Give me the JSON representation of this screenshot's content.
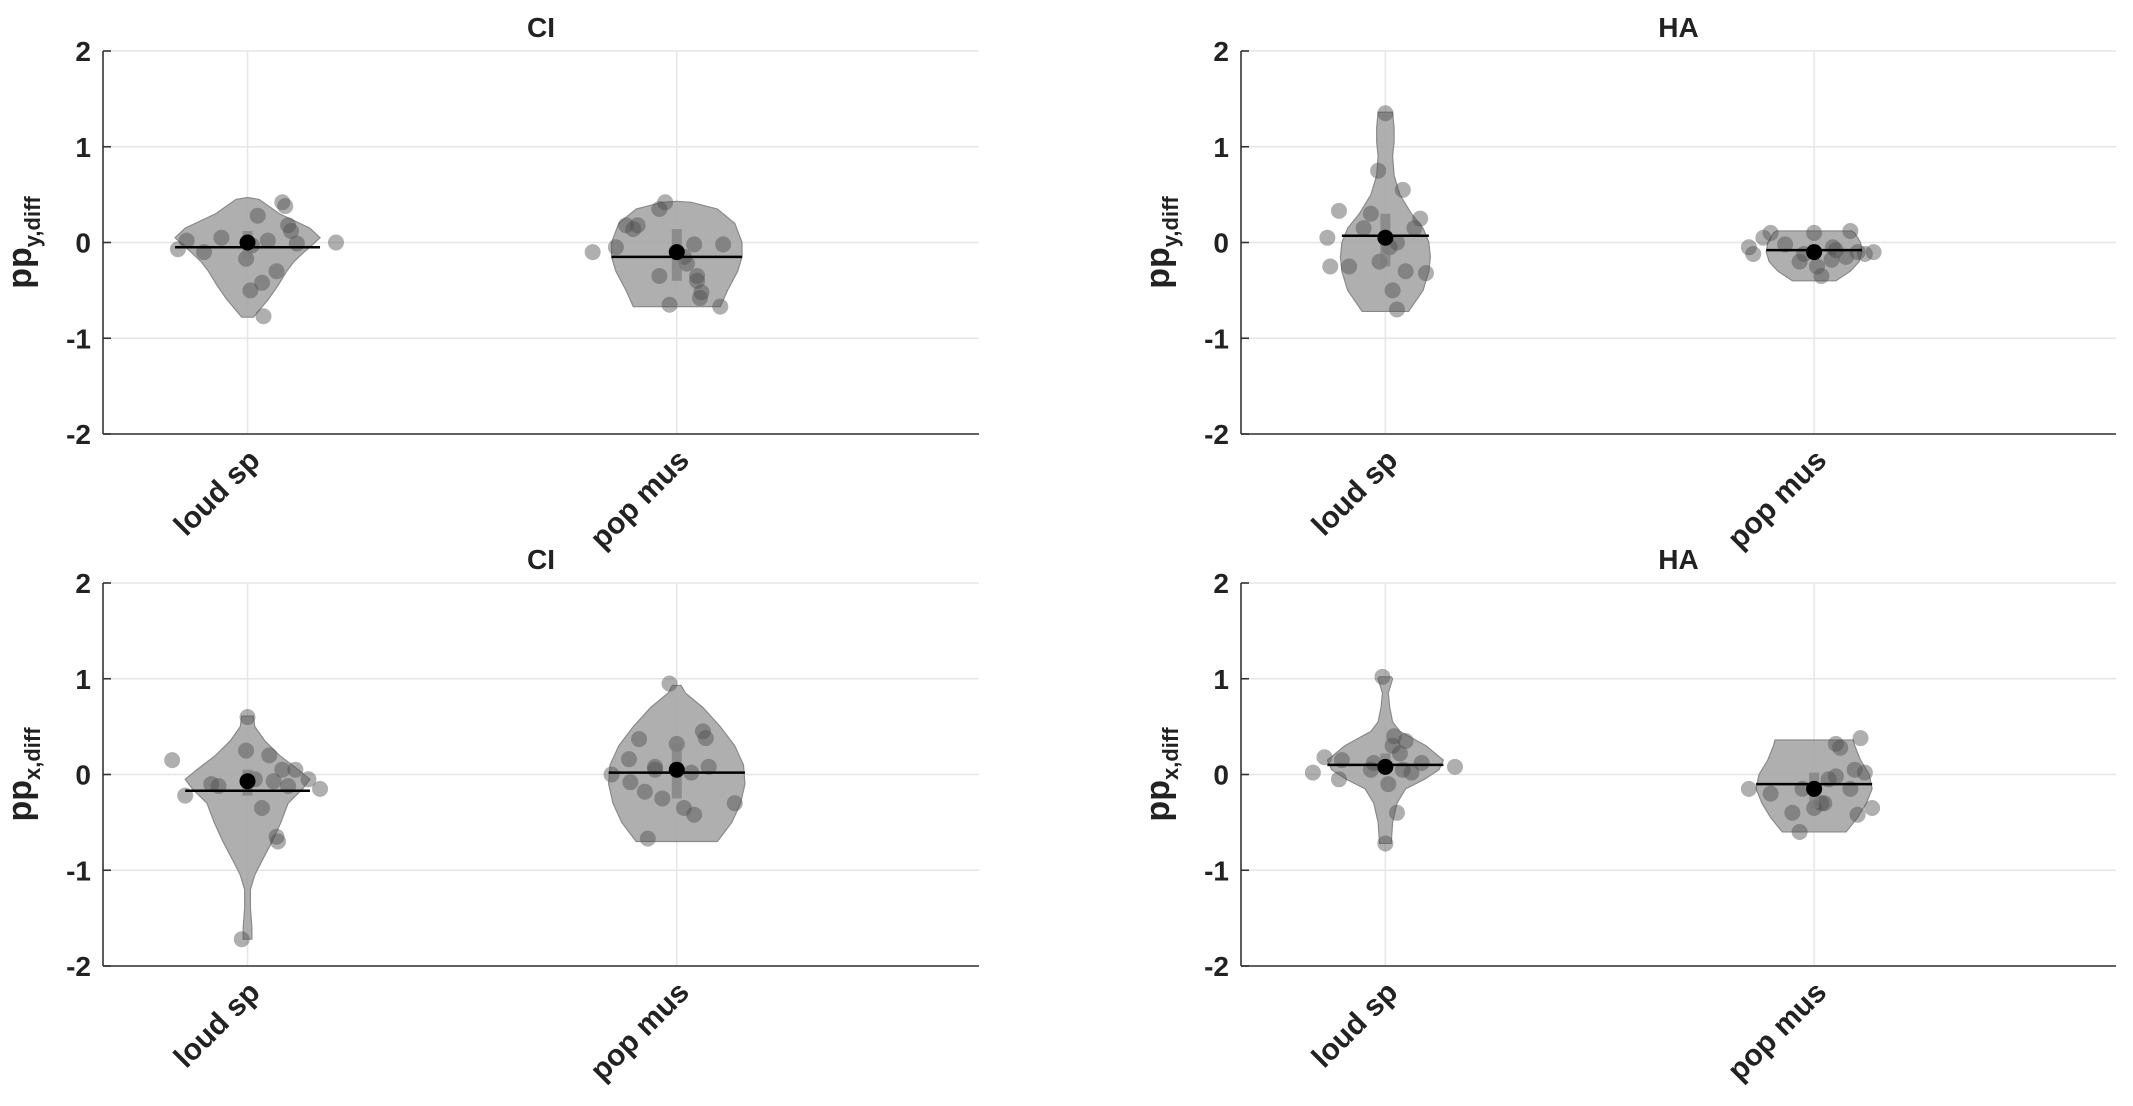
{
  "figure": {
    "fill": "#a6a6a6",
    "dot": "#4d4d4d",
    "median": "#000000"
  },
  "chart_data": [
    {
      "type": "violin",
      "title": "CI",
      "ylabel": {
        "base": "pp",
        "sub": "y,diff"
      },
      "ylim": [
        -2,
        2
      ],
      "yticks": [
        "2",
        "1",
        "0",
        "-1",
        "-2"
      ],
      "categories": [
        "loud sp",
        "pop mus"
      ],
      "groups": [
        {
          "name": "loud sp",
          "median": 0.0,
          "mean": -0.05,
          "points": [
            [
              -0.48,
              -0.07
            ],
            [
              -0.42,
              0.02
            ],
            [
              -0.3,
              -0.1
            ],
            [
              -0.18,
              0.05
            ],
            [
              -0.01,
              -0.17
            ],
            [
              0.02,
              -0.5
            ],
            [
              0.03,
              -0.03
            ],
            [
              0.07,
              0.28
            ],
            [
              0.1,
              -0.42
            ],
            [
              0.11,
              -0.77
            ],
            [
              0.14,
              0.02
            ],
            [
              0.2,
              -0.3
            ],
            [
              0.24,
              0.42
            ],
            [
              0.26,
              0.38
            ],
            [
              0.28,
              0.18
            ],
            [
              0.3,
              0.12
            ],
            [
              0.34,
              -0.01
            ],
            [
              0.61,
              0.0
            ]
          ],
          "violin": [
            [
              -0.78,
              0.04
            ],
            [
              -0.6,
              0.14
            ],
            [
              -0.45,
              0.21
            ],
            [
              -0.3,
              0.27
            ],
            [
              -0.2,
              0.32
            ],
            [
              -0.1,
              0.39
            ],
            [
              -0.02,
              0.45
            ],
            [
              0.05,
              0.5
            ],
            [
              0.15,
              0.43
            ],
            [
              0.3,
              0.22
            ],
            [
              0.45,
              0.08
            ],
            [
              0.47,
              0.0
            ]
          ]
        },
        {
          "name": "pop mus",
          "median": -0.1,
          "mean": -0.15,
          "points": [
            [
              -0.58,
              -0.1
            ],
            [
              -0.42,
              -0.05
            ],
            [
              -0.35,
              0.18
            ],
            [
              -0.3,
              0.14
            ],
            [
              -0.27,
              0.18
            ],
            [
              -0.12,
              -0.35
            ],
            [
              -0.05,
              -0.65
            ],
            [
              -0.12,
              0.35
            ],
            [
              -0.08,
              0.42
            ],
            [
              0.05,
              -0.15
            ],
            [
              0.07,
              -0.22
            ],
            [
              0.12,
              -0.02
            ],
            [
              0.14,
              -0.35
            ],
            [
              0.14,
              -0.4
            ],
            [
              0.16,
              -0.58
            ],
            [
              0.17,
              -0.52
            ],
            [
              0.32,
              -0.02
            ],
            [
              0.3,
              -0.67
            ]
          ],
          "violin": [
            [
              -0.67,
              0.3
            ],
            [
              -0.5,
              0.35
            ],
            [
              -0.3,
              0.42
            ],
            [
              -0.15,
              0.45
            ],
            [
              0.0,
              0.45
            ],
            [
              0.2,
              0.4
            ],
            [
              0.35,
              0.28
            ],
            [
              0.42,
              0.1
            ],
            [
              0.43,
              0.0
            ]
          ]
        }
      ]
    },
    {
      "type": "violin",
      "title": "HA",
      "ylabel": {
        "base": "pp",
        "sub": "y,diff"
      },
      "ylim": [
        -2,
        2
      ],
      "yticks": [
        "2",
        "1",
        "0",
        "-1",
        "-2"
      ],
      "categories": [
        "loud sp",
        "pop mus"
      ],
      "groups": [
        {
          "name": "loud sp",
          "median": 0.05,
          "mean": 0.07,
          "points": [
            [
              -0.4,
              0.05
            ],
            [
              -0.38,
              -0.25
            ],
            [
              -0.32,
              0.33
            ],
            [
              -0.25,
              -0.25
            ],
            [
              -0.15,
              0.15
            ],
            [
              -0.1,
              0.3
            ],
            [
              -0.05,
              0.75
            ],
            [
              0.0,
              1.35
            ],
            [
              0.03,
              -0.05
            ],
            [
              0.05,
              -0.5
            ],
            [
              0.08,
              -0.7
            ],
            [
              0.12,
              0.55
            ],
            [
              0.14,
              -0.3
            ],
            [
              0.2,
              0.15
            ],
            [
              0.24,
              0.25
            ],
            [
              0.28,
              -0.32
            ],
            [
              -0.04,
              -0.2
            ],
            [
              0.08,
              0.0
            ]
          ],
          "violin": [
            [
              -0.72,
              0.16
            ],
            [
              -0.5,
              0.26
            ],
            [
              -0.3,
              0.3
            ],
            [
              -0.15,
              0.31
            ],
            [
              0.0,
              0.3
            ],
            [
              0.15,
              0.26
            ],
            [
              0.3,
              0.18
            ],
            [
              0.5,
              0.1
            ],
            [
              0.7,
              0.06
            ],
            [
              0.9,
              0.05
            ],
            [
              1.05,
              0.06
            ],
            [
              1.2,
              0.06
            ],
            [
              1.36,
              0.05
            ]
          ]
        },
        {
          "name": "pop mus",
          "median": -0.1,
          "mean": -0.08,
          "points": [
            [
              -0.45,
              -0.05
            ],
            [
              -0.42,
              -0.12
            ],
            [
              -0.35,
              0.05
            ],
            [
              -0.3,
              0.1
            ],
            [
              -0.2,
              -0.02
            ],
            [
              -0.1,
              -0.2
            ],
            [
              -0.07,
              -0.12
            ],
            [
              0.0,
              0.1
            ],
            [
              0.02,
              -0.25
            ],
            [
              0.05,
              -0.35
            ],
            [
              0.12,
              -0.18
            ],
            [
              0.13,
              -0.05
            ],
            [
              0.15,
              -0.08
            ],
            [
              0.22,
              -0.15
            ],
            [
              0.25,
              0.12
            ],
            [
              0.3,
              -0.1
            ],
            [
              0.35,
              -0.12
            ],
            [
              0.41,
              -0.1
            ]
          ],
          "violin": [
            [
              -0.4,
              0.15
            ],
            [
              -0.3,
              0.25
            ],
            [
              -0.2,
              0.31
            ],
            [
              -0.1,
              0.33
            ],
            [
              0.0,
              0.32
            ],
            [
              0.1,
              0.28
            ],
            [
              0.12,
              0.26
            ]
          ]
        }
      ]
    },
    {
      "type": "violin",
      "title": "CI",
      "ylabel": {
        "base": "pp",
        "sub": "x,diff"
      },
      "ylim": [
        -2,
        2
      ],
      "yticks": [
        "2",
        "1",
        "0",
        "-1",
        "-2"
      ],
      "categories": [
        "loud sp",
        "pop mus"
      ],
      "groups": [
        {
          "name": "loud sp",
          "median": -0.07,
          "mean": -0.17,
          "points": [
            [
              -0.52,
              0.15
            ],
            [
              -0.43,
              -0.22
            ],
            [
              -0.25,
              -0.1
            ],
            [
              -0.2,
              -0.12
            ],
            [
              -0.01,
              0.25
            ],
            [
              0.0,
              0.6
            ],
            [
              0.05,
              -0.05
            ],
            [
              0.1,
              -0.35
            ],
            [
              0.15,
              0.2
            ],
            [
              0.2,
              -0.65
            ],
            [
              0.21,
              -0.7
            ],
            [
              0.18,
              -0.07
            ],
            [
              0.24,
              0.05
            ],
            [
              0.28,
              -0.12
            ],
            [
              0.33,
              0.05
            ],
            [
              0.42,
              -0.05
            ],
            [
              0.5,
              -0.15
            ],
            [
              -0.04,
              -1.72
            ]
          ],
          "violin": [
            [
              -1.72,
              0.03
            ],
            [
              -1.6,
              0.03
            ],
            [
              -1.4,
              0.02
            ],
            [
              -1.2,
              0.02
            ],
            [
              -1.05,
              0.05
            ],
            [
              -0.9,
              0.1
            ],
            [
              -0.7,
              0.17
            ],
            [
              -0.5,
              0.23
            ],
            [
              -0.3,
              0.28
            ],
            [
              -0.15,
              0.38
            ],
            [
              -0.05,
              0.43
            ],
            [
              0.05,
              0.35
            ],
            [
              0.2,
              0.22
            ],
            [
              0.35,
              0.12
            ],
            [
              0.5,
              0.05
            ],
            [
              0.61,
              0.04
            ]
          ]
        },
        {
          "name": "pop mus",
          "median": 0.05,
          "mean": 0.02,
          "points": [
            [
              -0.33,
              0.16
            ],
            [
              -0.32,
              -0.08
            ],
            [
              -0.26,
              0.37
            ],
            [
              -0.22,
              -0.18
            ],
            [
              -0.2,
              -0.67
            ],
            [
              -0.15,
              0.05
            ],
            [
              -0.15,
              0.08
            ],
            [
              -0.1,
              -0.25
            ],
            [
              -0.05,
              0.95
            ],
            [
              0.0,
              0.32
            ],
            [
              0.05,
              -0.35
            ],
            [
              0.1,
              0.02
            ],
            [
              0.12,
              -0.42
            ],
            [
              0.18,
              0.45
            ],
            [
              0.2,
              0.38
            ],
            [
              0.22,
              0.08
            ],
            [
              0.4,
              -0.3
            ],
            [
              -0.45,
              0.0
            ]
          ],
          "violin": [
            [
              -0.7,
              0.28
            ],
            [
              -0.5,
              0.38
            ],
            [
              -0.3,
              0.44
            ],
            [
              -0.1,
              0.47
            ],
            [
              0.1,
              0.46
            ],
            [
              0.3,
              0.4
            ],
            [
              0.5,
              0.3
            ],
            [
              0.7,
              0.18
            ],
            [
              0.85,
              0.06
            ],
            [
              0.93,
              0.03
            ]
          ]
        }
      ]
    },
    {
      "type": "violin",
      "title": "HA",
      "ylabel": {
        "base": "pp",
        "sub": "x,diff"
      },
      "ylim": [
        -2,
        2
      ],
      "yticks": [
        "2",
        "1",
        "0",
        "-1",
        "-2"
      ],
      "categories": [
        "loud sp",
        "pop mus"
      ],
      "groups": [
        {
          "name": "loud sp",
          "median": 0.08,
          "mean": 0.1,
          "points": [
            [
              -0.5,
              0.02
            ],
            [
              -0.42,
              0.18
            ],
            [
              -0.32,
              -0.05
            ],
            [
              -0.3,
              0.15
            ],
            [
              -0.1,
              0.05
            ],
            [
              -0.08,
              0.12
            ],
            [
              -0.02,
              1.02
            ],
            [
              0.0,
              -0.72
            ],
            [
              0.02,
              -0.1
            ],
            [
              0.05,
              0.3
            ],
            [
              0.06,
              0.4
            ],
            [
              0.08,
              -0.4
            ],
            [
              0.1,
              0.22
            ],
            [
              0.12,
              0.05
            ],
            [
              0.14,
              0.35
            ],
            [
              0.18,
              0.02
            ],
            [
              0.25,
              0.12
            ],
            [
              0.48,
              0.08
            ]
          ],
          "violin": [
            [
              -0.72,
              0.04
            ],
            [
              -0.5,
              0.05
            ],
            [
              -0.3,
              0.08
            ],
            [
              -0.15,
              0.14
            ],
            [
              -0.05,
              0.27
            ],
            [
              0.05,
              0.37
            ],
            [
              0.15,
              0.4
            ],
            [
              0.3,
              0.28
            ],
            [
              0.45,
              0.1
            ],
            [
              0.55,
              0.05
            ],
            [
              0.7,
              0.03
            ],
            [
              0.85,
              0.02
            ],
            [
              1.0,
              0.05
            ],
            [
              1.02,
              0.04
            ]
          ]
        },
        {
          "name": "pop mus",
          "median": -0.15,
          "mean": -0.1,
          "points": [
            [
              -0.45,
              -0.15
            ],
            [
              -0.3,
              -0.2
            ],
            [
              -0.15,
              -0.4
            ],
            [
              -0.1,
              -0.6
            ],
            [
              -0.08,
              -0.15
            ],
            [
              0.0,
              -0.35
            ],
            [
              0.05,
              -0.3
            ],
            [
              0.07,
              -0.3
            ],
            [
              0.1,
              -0.05
            ],
            [
              0.15,
              -0.02
            ],
            [
              0.15,
              0.32
            ],
            [
              0.18,
              0.28
            ],
            [
              0.25,
              -0.15
            ],
            [
              0.28,
              0.05
            ],
            [
              0.3,
              -0.42
            ],
            [
              0.32,
              0.38
            ],
            [
              0.35,
              0.02
            ],
            [
              0.4,
              -0.35
            ]
          ],
          "violin": [
            [
              -0.6,
              0.22
            ],
            [
              -0.45,
              0.3
            ],
            [
              -0.3,
              0.36
            ],
            [
              -0.15,
              0.4
            ],
            [
              0.0,
              0.38
            ],
            [
              0.15,
              0.32
            ],
            [
              0.3,
              0.28
            ],
            [
              0.36,
              0.27
            ]
          ]
        }
      ]
    }
  ]
}
